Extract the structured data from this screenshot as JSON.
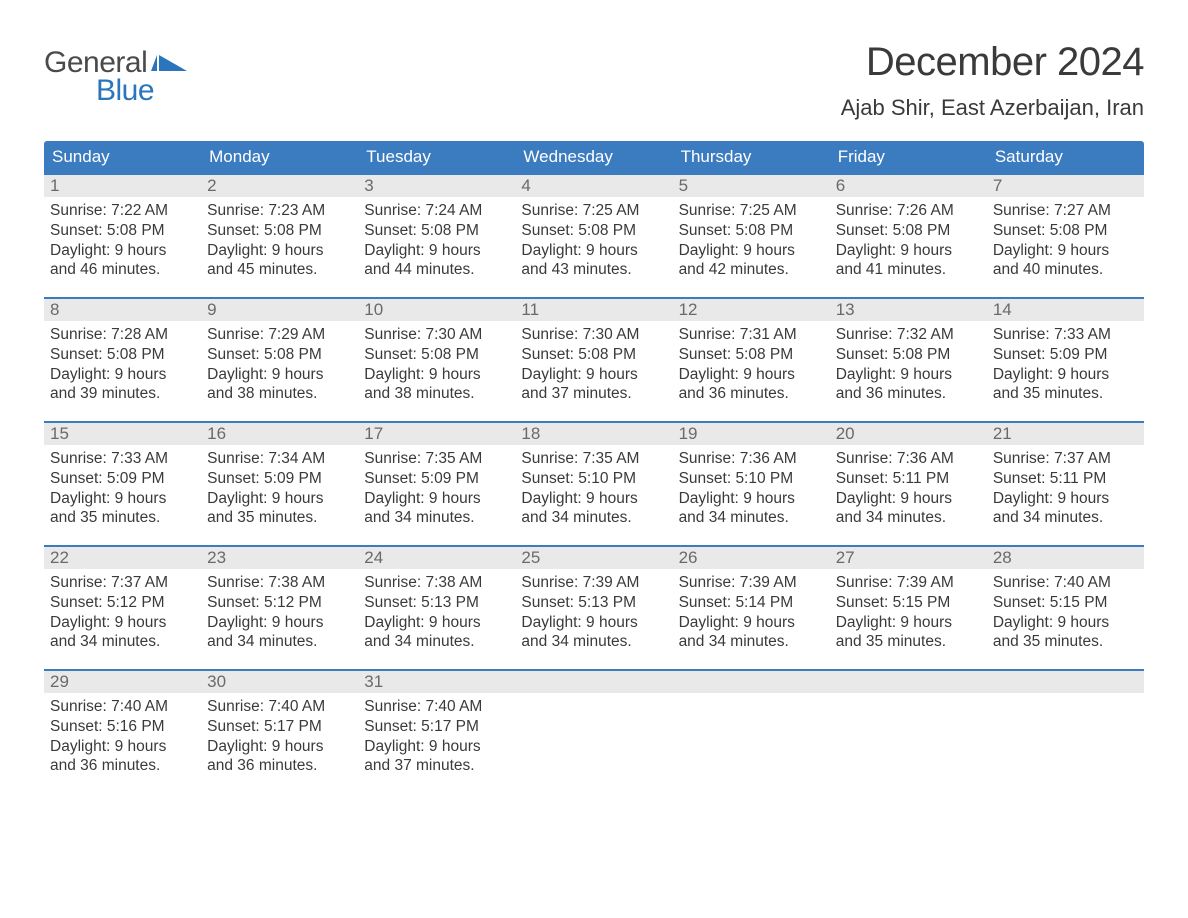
{
  "logo": {
    "word1": "General",
    "word2": "Blue",
    "word1_color": "#4a4a4a",
    "word2_color": "#2a75bb",
    "flag_color": "#2a75bb"
  },
  "header": {
    "title": "December 2024",
    "location": "Ajab Shir, East Azerbaijan, Iran",
    "title_fontsize": 40,
    "location_fontsize": 22,
    "text_color": "#3a3a3a"
  },
  "styling": {
    "header_row_bg": "#3b7bbf",
    "header_row_text": "#ffffff",
    "day_number_bg": "#e9e9e9",
    "day_number_text": "#6a6a6a",
    "week_border_color": "#3b7bbf",
    "body_text_color": "#3a3a3a",
    "page_bg": "#ffffff",
    "body_fontsize": 15.5,
    "header_cell_fontsize": 17
  },
  "day_names": [
    "Sunday",
    "Monday",
    "Tuesday",
    "Wednesday",
    "Thursday",
    "Friday",
    "Saturday"
  ],
  "weeks": [
    [
      {
        "n": "1",
        "sunrise": "7:22 AM",
        "sunset": "5:08 PM",
        "dl1": "9 hours",
        "dl2": "and 46 minutes."
      },
      {
        "n": "2",
        "sunrise": "7:23 AM",
        "sunset": "5:08 PM",
        "dl1": "9 hours",
        "dl2": "and 45 minutes."
      },
      {
        "n": "3",
        "sunrise": "7:24 AM",
        "sunset": "5:08 PM",
        "dl1": "9 hours",
        "dl2": "and 44 minutes."
      },
      {
        "n": "4",
        "sunrise": "7:25 AM",
        "sunset": "5:08 PM",
        "dl1": "9 hours",
        "dl2": "and 43 minutes."
      },
      {
        "n": "5",
        "sunrise": "7:25 AM",
        "sunset": "5:08 PM",
        "dl1": "9 hours",
        "dl2": "and 42 minutes."
      },
      {
        "n": "6",
        "sunrise": "7:26 AM",
        "sunset": "5:08 PM",
        "dl1": "9 hours",
        "dl2": "and 41 minutes."
      },
      {
        "n": "7",
        "sunrise": "7:27 AM",
        "sunset": "5:08 PM",
        "dl1": "9 hours",
        "dl2": "and 40 minutes."
      }
    ],
    [
      {
        "n": "8",
        "sunrise": "7:28 AM",
        "sunset": "5:08 PM",
        "dl1": "9 hours",
        "dl2": "and 39 minutes."
      },
      {
        "n": "9",
        "sunrise": "7:29 AM",
        "sunset": "5:08 PM",
        "dl1": "9 hours",
        "dl2": "and 38 minutes."
      },
      {
        "n": "10",
        "sunrise": "7:30 AM",
        "sunset": "5:08 PM",
        "dl1": "9 hours",
        "dl2": "and 38 minutes."
      },
      {
        "n": "11",
        "sunrise": "7:30 AM",
        "sunset": "5:08 PM",
        "dl1": "9 hours",
        "dl2": "and 37 minutes."
      },
      {
        "n": "12",
        "sunrise": "7:31 AM",
        "sunset": "5:08 PM",
        "dl1": "9 hours",
        "dl2": "and 36 minutes."
      },
      {
        "n": "13",
        "sunrise": "7:32 AM",
        "sunset": "5:08 PM",
        "dl1": "9 hours",
        "dl2": "and 36 minutes."
      },
      {
        "n": "14",
        "sunrise": "7:33 AM",
        "sunset": "5:09 PM",
        "dl1": "9 hours",
        "dl2": "and 35 minutes."
      }
    ],
    [
      {
        "n": "15",
        "sunrise": "7:33 AM",
        "sunset": "5:09 PM",
        "dl1": "9 hours",
        "dl2": "and 35 minutes."
      },
      {
        "n": "16",
        "sunrise": "7:34 AM",
        "sunset": "5:09 PM",
        "dl1": "9 hours",
        "dl2": "and 35 minutes."
      },
      {
        "n": "17",
        "sunrise": "7:35 AM",
        "sunset": "5:09 PM",
        "dl1": "9 hours",
        "dl2": "and 34 minutes."
      },
      {
        "n": "18",
        "sunrise": "7:35 AM",
        "sunset": "5:10 PM",
        "dl1": "9 hours",
        "dl2": "and 34 minutes."
      },
      {
        "n": "19",
        "sunrise": "7:36 AM",
        "sunset": "5:10 PM",
        "dl1": "9 hours",
        "dl2": "and 34 minutes."
      },
      {
        "n": "20",
        "sunrise": "7:36 AM",
        "sunset": "5:11 PM",
        "dl1": "9 hours",
        "dl2": "and 34 minutes."
      },
      {
        "n": "21",
        "sunrise": "7:37 AM",
        "sunset": "5:11 PM",
        "dl1": "9 hours",
        "dl2": "and 34 minutes."
      }
    ],
    [
      {
        "n": "22",
        "sunrise": "7:37 AM",
        "sunset": "5:12 PM",
        "dl1": "9 hours",
        "dl2": "and 34 minutes."
      },
      {
        "n": "23",
        "sunrise": "7:38 AM",
        "sunset": "5:12 PM",
        "dl1": "9 hours",
        "dl2": "and 34 minutes."
      },
      {
        "n": "24",
        "sunrise": "7:38 AM",
        "sunset": "5:13 PM",
        "dl1": "9 hours",
        "dl2": "and 34 minutes."
      },
      {
        "n": "25",
        "sunrise": "7:39 AM",
        "sunset": "5:13 PM",
        "dl1": "9 hours",
        "dl2": "and 34 minutes."
      },
      {
        "n": "26",
        "sunrise": "7:39 AM",
        "sunset": "5:14 PM",
        "dl1": "9 hours",
        "dl2": "and 34 minutes."
      },
      {
        "n": "27",
        "sunrise": "7:39 AM",
        "sunset": "5:15 PM",
        "dl1": "9 hours",
        "dl2": "and 35 minutes."
      },
      {
        "n": "28",
        "sunrise": "7:40 AM",
        "sunset": "5:15 PM",
        "dl1": "9 hours",
        "dl2": "and 35 minutes."
      }
    ],
    [
      {
        "n": "29",
        "sunrise": "7:40 AM",
        "sunset": "5:16 PM",
        "dl1": "9 hours",
        "dl2": "and 36 minutes."
      },
      {
        "n": "30",
        "sunrise": "7:40 AM",
        "sunset": "5:17 PM",
        "dl1": "9 hours",
        "dl2": "and 36 minutes."
      },
      {
        "n": "31",
        "sunrise": "7:40 AM",
        "sunset": "5:17 PM",
        "dl1": "9 hours",
        "dl2": "and 37 minutes."
      },
      {
        "empty": true
      },
      {
        "empty": true
      },
      {
        "empty": true
      },
      {
        "empty": true
      }
    ]
  ],
  "labels": {
    "sunrise_prefix": "Sunrise: ",
    "sunset_prefix": "Sunset: ",
    "daylight_prefix": "Daylight: "
  }
}
